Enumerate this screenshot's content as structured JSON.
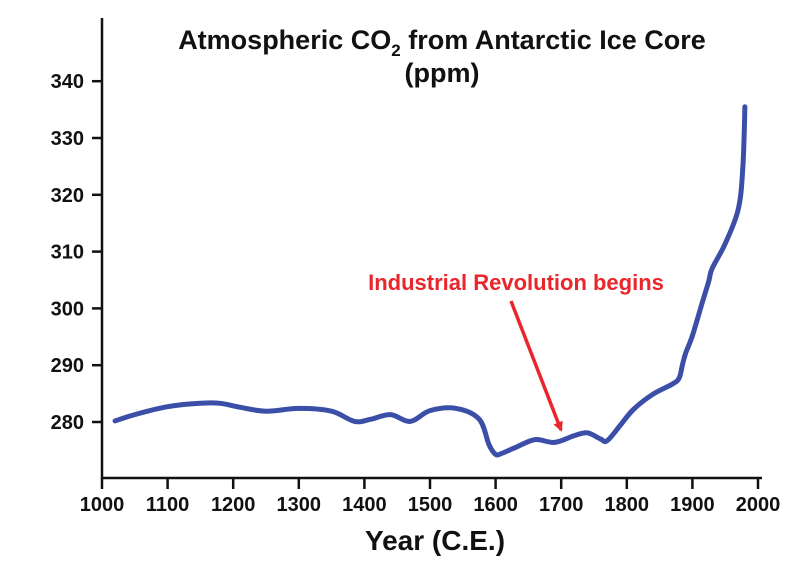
{
  "chart_data": {
    "type": "line",
    "title_main": "Atmospheric CO",
    "title_sub": "2",
    "title_tail": " from Antarctic Ice Core",
    "title_line2": "(ppm)",
    "xlabel": "Year (C.E.)",
    "ylabel": "",
    "xlim": [
      1000,
      2000
    ],
    "ylim": [
      270,
      350
    ],
    "x_ticks": [
      1000,
      1100,
      1200,
      1300,
      1400,
      1500,
      1600,
      1700,
      1800,
      1900,
      2000
    ],
    "y_ticks": [
      280,
      290,
      300,
      310,
      320,
      330,
      340
    ],
    "grid": false,
    "series": [
      {
        "color": "#3b4fa8",
        "x": [
          1020,
          1050,
          1100,
          1150,
          1180,
          1210,
          1250,
          1300,
          1350,
          1385,
          1410,
          1440,
          1470,
          1500,
          1540,
          1575,
          1590,
          1600,
          1610,
          1630,
          1660,
          1690,
          1720,
          1740,
          1760,
          1770,
          1790,
          1810,
          1840,
          1870,
          1880,
          1885,
          1890,
          1900,
          1915,
          1925,
          1930,
          1950,
          1970,
          1977,
          1980
        ],
        "y": [
          280.2,
          281.3,
          282.7,
          283.3,
          283.3,
          282.6,
          281.9,
          282.4,
          281.9,
          280.1,
          280.5,
          281.3,
          280.1,
          282.0,
          282.4,
          280.5,
          276.0,
          274.3,
          274.5,
          275.5,
          276.9,
          276.4,
          277.6,
          278.1,
          277.0,
          276.7,
          279.4,
          282.2,
          284.9,
          286.7,
          287.8,
          290.2,
          292.2,
          295.2,
          301.0,
          304.8,
          307.0,
          311.4,
          317.5,
          325.0,
          335.5
        ]
      }
    ],
    "annotations": [
      {
        "text": "Industrial Revolution begins",
        "color": "#e8262c",
        "points_to": {
          "x": 1690,
          "y": 276.4
        }
      }
    ]
  }
}
